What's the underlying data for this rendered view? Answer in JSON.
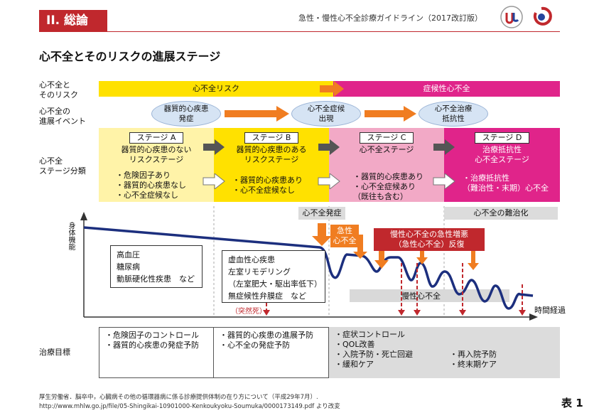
{
  "header": {
    "section": "II. 総論",
    "guideline": "急性・慢性心不全診療ガイドライン（2017改訂版）",
    "title": "心不全とそのリスクの進展ステージ"
  },
  "rows": {
    "risk_label": "心不全と\nそのリスク",
    "event_label": "心不全の\n進展イベント",
    "stage_label": "心不全\nステージ分類",
    "treatment_label": "治療目標",
    "body_function_label": "身体機能",
    "time_label": "時間経過"
  },
  "risk_bar": {
    "risk": "心不全リスク",
    "symptomatic": "症候性心不全"
  },
  "events": [
    "器質的心疾患\n発症",
    "心不全症候\n出現",
    "心不全治療\n抵抗性"
  ],
  "stages": [
    {
      "name": "ステージ A",
      "desc": "器質的心疾患のない\nリスクステージ",
      "items": [
        "・危険因子あり",
        "・器質的心疾患なし",
        "・心不全症候なし"
      ],
      "color": "#fff3a8"
    },
    {
      "name": "ステージ B",
      "desc": "器質的心疾患のある\nリスクステージ",
      "items": [
        "・器質的心疾患あり",
        "・心不全症候なし"
      ],
      "color": "#ffe100"
    },
    {
      "name": "ステージ C",
      "desc": "心不全ステージ",
      "items": [
        "・器質的心疾患あり",
        "・心不全症候あり",
        "（既往も含む）"
      ],
      "color": "#f2a9c6"
    },
    {
      "name": "ステージ D",
      "desc": "治療抵抗性\n心不全ステージ",
      "items": [
        "・治療抵抗性",
        "（難治性・末期）心不全"
      ],
      "color": "#e0248a"
    }
  ],
  "chart_labels": {
    "onset": "心不全発症",
    "refractory": "心不全の難治化",
    "acute_hf": "急性\n心不全",
    "acute_exacerbation": "慢性心不全の急性増悪\n（急性心不全）反復",
    "chronic_hf": "慢性心不全",
    "sudden_death": "（突然死）",
    "risk_factors": [
      "高血圧",
      "糖尿病",
      "動脈硬化性疾患　など"
    ],
    "structural": [
      "虚血性心疾患",
      "左室リモデリング",
      "（左室肥大・駆出率低下）",
      "無症候性弁膜症　など"
    ]
  },
  "treatment": {
    "a": [
      "・危険因子のコントロール",
      "・器質的心疾患の発症予防"
    ],
    "b": [
      "・器質的心疾患の進展予防",
      "・心不全の発症予防"
    ],
    "cd_left": [
      "・症状コントロール",
      "・QOL改善",
      "・入院予防・死亡回避",
      "・緩和ケア"
    ],
    "cd_right": [
      "・再入院予防",
      "・終末期ケア"
    ]
  },
  "footer": {
    "source1": "厚生労働省．脳卒中，心臓病その他の循環器病に係る診療提供体制の在り方について（平成29年7月）.",
    "source2": "http://www.mhlw.go.jp/file/05-Shingikai-10901000-Kenkoukyoku-Soumuka/0000173149.pdf より改変",
    "table_no": "表 1"
  },
  "colors": {
    "brand_red": "#c0282d",
    "arrow_orange": "#f07d21",
    "curve": "#1c2f7e"
  }
}
